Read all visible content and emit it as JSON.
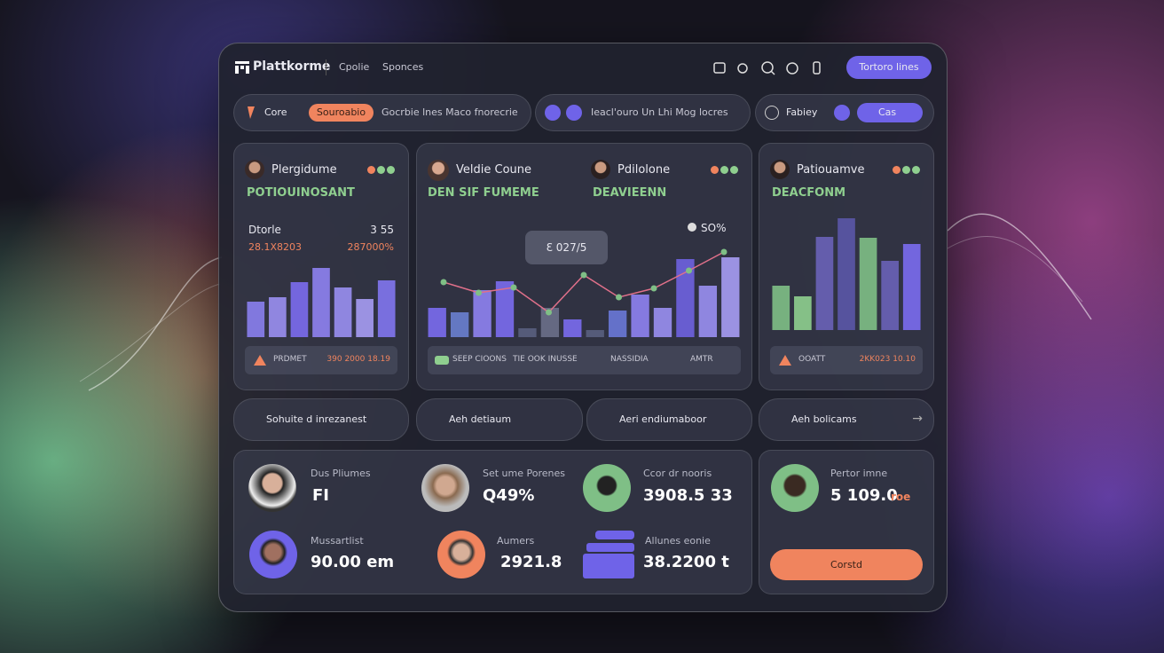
{
  "header": {
    "logo": "Plattkorme",
    "nav": [
      "Cpolie",
      "Sponces"
    ],
    "button": "Tortoro lines"
  },
  "filters": {
    "core": "Core",
    "tag": "Souroabio",
    "description": "Gocrbie lnes Maco fnorecrie",
    "middle": "Ieacl'ouro Un Lhi Mog locres",
    "right": "Fabiey",
    "pill": "Cas"
  },
  "cards": [
    {
      "name": "Plergidume",
      "subtitle": "POTIOUINOSANT",
      "stat_label": "Dtorle",
      "stat_value": "3 55",
      "stat_left": "28.1X8203",
      "stat_right": "287000%",
      "footer_left": "PRDMET",
      "footer_right": "390 2000 18.19",
      "bars": [
        40,
        45,
        62,
        78,
        56,
        43,
        64
      ],
      "bar_colors": [
        "#8a7ff0",
        "#9a8ff2",
        "#7b6cf0",
        "#8f82f2",
        "#9a8ff2",
        "#a79cf4",
        "#8275f0"
      ]
    },
    {
      "name": "Veldie Coune",
      "name2": "Pdilolone",
      "subtitle": "DEN SIF FUMEME",
      "subtitle2": "DEAVIEENN",
      "tooltip": "Ɛ 027/5",
      "badge": "SO%",
      "footer": [
        "SEEP CIOONS",
        "TIE OOK INUSSE",
        "NASSIDIA",
        "AMTR"
      ],
      "bars": [
        33,
        28,
        53,
        63,
        10,
        33,
        20,
        8,
        30,
        48,
        33,
        88,
        58,
        90
      ],
      "bar_colors": [
        "#7b6cf0",
        "#6a7fd0",
        "#8f82f2",
        "#7b6cf0",
        "#5a5f80",
        "#6c6f8a",
        "#7b6cf0",
        "#5a5f80",
        "#6a78d8",
        "#8f82f2",
        "#9a8ff2",
        "#6f62e0",
        "#9a8ff2",
        "#a79cf4"
      ],
      "line": [
        62,
        50,
        56,
        28,
        70,
        45,
        55,
        75,
        96
      ]
    },
    {
      "name": "Patiouamve",
      "subtitle": "DEACFONM",
      "footer_left": "OOATT",
      "footer_right": "2KK023 10.10",
      "bars": [
        50,
        38,
        105,
        126,
        104,
        78,
        97
      ],
      "bar_colors": [
        "#7fbf86",
        "#8fcf8f",
        "#6a62b8",
        "#5b56a8",
        "#7fbf86",
        "#6a62b8",
        "#7b6cf0"
      ]
    }
  ],
  "actions": [
    "Sohuite d inrezanest",
    "Aeh detiaum",
    "Aeri endiumaboor",
    "Aeh bolicams"
  ],
  "people": [
    {
      "label": "Dus Pliumes",
      "value": "FI"
    },
    {
      "label": "Set ume Porenes",
      "value": "Q49%"
    },
    {
      "label": "Ccor dr nooris",
      "value": "3908.5 33"
    },
    {
      "label": "Mussartlist",
      "value": "90.00 em"
    },
    {
      "label": "Aumers",
      "value": "2921.8"
    },
    {
      "label": "Allunes eonie",
      "value": "38.2200 t"
    }
  ],
  "summary": {
    "label": "Pertor imne",
    "value": "5 109.0",
    "unit": "roe",
    "button": "Corstd"
  }
}
